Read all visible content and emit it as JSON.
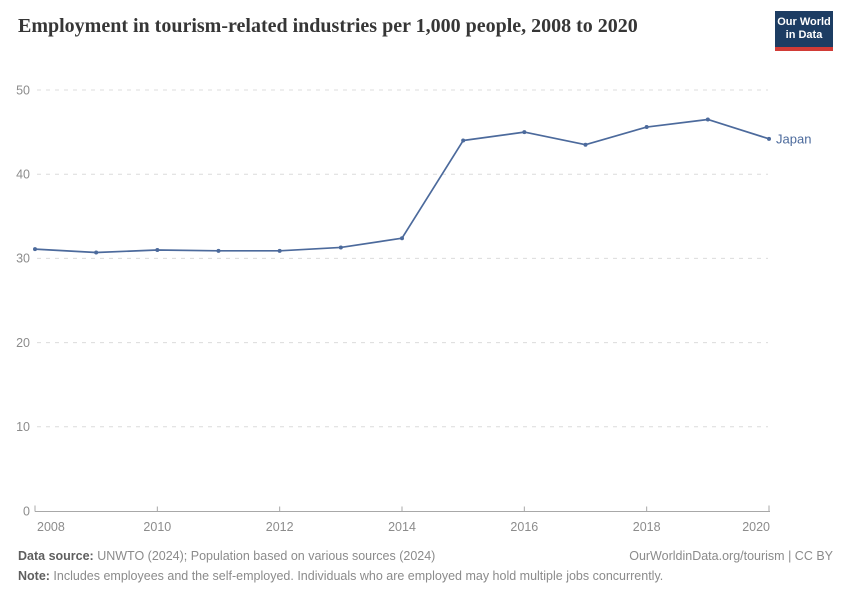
{
  "header": {
    "logo": {
      "line1": "Our World",
      "line2": "in Data"
    }
  },
  "chart_data": {
    "type": "line",
    "title": "Employment in tourism-related industries per 1,000 people, 2008 to 2020",
    "x": [
      2008,
      2009,
      2010,
      2011,
      2012,
      2013,
      2014,
      2015,
      2016,
      2017,
      2018,
      2019,
      2020
    ],
    "series": [
      {
        "name": "Japan",
        "color": "#4c6a9c",
        "values": [
          31.1,
          30.7,
          31.0,
          30.9,
          30.9,
          31.3,
          32.4,
          44.0,
          45.0,
          43.5,
          45.6,
          46.5,
          44.2
        ]
      }
    ],
    "xlabel": "",
    "ylabel": "",
    "xlim": [
      2008,
      2020
    ],
    "ylim": [
      0,
      50
    ],
    "x_ticks": [
      2008,
      2010,
      2012,
      2014,
      2016,
      2018,
      2020
    ],
    "y_ticks": [
      0,
      10,
      20,
      30,
      40,
      50
    ],
    "grid": "horizontal dashed",
    "legend_position": "end-of-line label"
  },
  "footer": {
    "source_label": "Data source:",
    "source_text": " UNWTO (2024); Population based on various sources (2024)",
    "license_text": "OurWorldinData.org/tourism | CC BY",
    "note_label": "Note:",
    "note_text": " Includes employees and the self-employed. Individuals who are employed may hold multiple jobs concurrently."
  },
  "colors": {
    "series_line": "#4c6a9c",
    "grid": "#dcdcdc",
    "axis": "#a8a8a8",
    "tick_label": "#8c8c8c",
    "title_text": "#363636",
    "footer_text": "#8b8b8b",
    "footer_label": "#5f5f5f",
    "logo_bg": "#1d3d63",
    "logo_stripe": "#d13b36",
    "logo_text": "#ffffff"
  }
}
